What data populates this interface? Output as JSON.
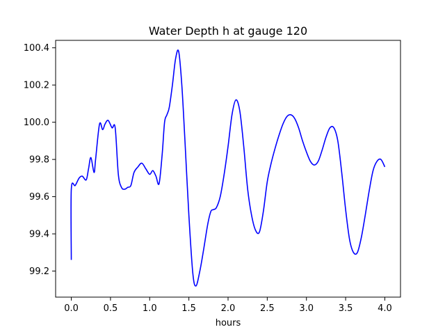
{
  "chart_data": {
    "type": "line",
    "title": "Water Depth h at gauge 120",
    "xlabel": "hours",
    "ylabel": "",
    "xlim": [
      -0.2,
      4.2
    ],
    "ylim": [
      99.06,
      100.44
    ],
    "xticks": [
      0.0,
      0.5,
      1.0,
      1.5,
      2.0,
      2.5,
      3.0,
      3.5,
      4.0
    ],
    "xtick_labels": [
      "0.0",
      "0.5",
      "1.0",
      "1.5",
      "2.0",
      "2.5",
      "3.0",
      "3.5",
      "4.0"
    ],
    "yticks": [
      99.2,
      99.4,
      99.6,
      99.8,
      100.0,
      100.2,
      100.4
    ],
    "ytick_labels": [
      "99.2",
      "99.4",
      "99.6",
      "99.8",
      "100.0",
      "100.2",
      "100.4"
    ],
    "grid": false,
    "series": [
      {
        "color": "#0000ff",
        "x": [
          0.0,
          0.0,
          0.05,
          0.1,
          0.14,
          0.19,
          0.22,
          0.25,
          0.29,
          0.31,
          0.36,
          0.4,
          0.43,
          0.47,
          0.52,
          0.56,
          0.6,
          0.64,
          0.68,
          0.72,
          0.76,
          0.8,
          0.85,
          0.9,
          0.95,
          1.0,
          1.04,
          1.08,
          1.12,
          1.16,
          1.19,
          1.22,
          1.25,
          1.29,
          1.33,
          1.37,
          1.41,
          1.45,
          1.5,
          1.55,
          1.59,
          1.64,
          1.69,
          1.74,
          1.78,
          1.81,
          1.85,
          1.9,
          1.95,
          2.0,
          2.05,
          2.1,
          2.15,
          2.2,
          2.25,
          2.3,
          2.35,
          2.4,
          2.45,
          2.5,
          2.55,
          2.6,
          2.65,
          2.7,
          2.75,
          2.8,
          2.85,
          2.9,
          2.95,
          3.0,
          3.05,
          3.1,
          3.15,
          3.2,
          3.25,
          3.3,
          3.35,
          3.4,
          3.45,
          3.5,
          3.55,
          3.6,
          3.65,
          3.7,
          3.75,
          3.8,
          3.85,
          3.9,
          3.95,
          4.0
        ],
        "y": [
          99.26,
          99.64,
          99.66,
          99.7,
          99.71,
          99.69,
          99.75,
          99.81,
          99.73,
          99.8,
          99.99,
          99.96,
          99.99,
          100.01,
          99.97,
          99.97,
          99.72,
          99.65,
          99.64,
          99.65,
          99.66,
          99.73,
          99.76,
          99.78,
          99.75,
          99.72,
          99.74,
          99.71,
          99.67,
          99.83,
          100.0,
          100.04,
          100.08,
          100.2,
          100.34,
          100.38,
          100.2,
          99.9,
          99.5,
          99.19,
          99.12,
          99.2,
          99.32,
          99.45,
          99.52,
          99.53,
          99.54,
          99.6,
          99.72,
          99.87,
          100.04,
          100.12,
          100.06,
          99.87,
          99.64,
          99.5,
          99.42,
          99.41,
          99.52,
          99.68,
          99.78,
          99.86,
          99.93,
          99.99,
          100.03,
          100.04,
          100.02,
          99.97,
          99.9,
          99.84,
          99.79,
          99.77,
          99.79,
          99.85,
          99.92,
          99.97,
          99.97,
          99.9,
          99.73,
          99.53,
          99.37,
          99.3,
          99.3,
          99.38,
          99.5,
          99.63,
          99.74,
          99.79,
          99.8,
          99.76
        ]
      }
    ]
  }
}
